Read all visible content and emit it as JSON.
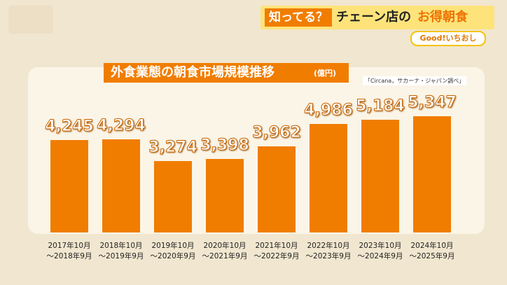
{
  "banner": {
    "tag": "知ってる？",
    "text": "チェーン店の",
    "highlight": "お得朝食",
    "badge": "Good!いちおし"
  },
  "chart_data": {
    "type": "bar",
    "title": "外食業態の朝食市場規模推移",
    "unit": "(億円)",
    "source": "「Circana，サカーナ・ジャパン調べ」",
    "categories": [
      "2017年10月\n～2018年9月",
      "2018年10月\n～2019年9月",
      "2019年10月\n～2020年9月",
      "2020年10月\n～2021年9月",
      "2021年10月\n～2022年9月",
      "2022年10月\n～2023年9月",
      "2023年10月\n～2024年9月",
      "2024年10月\n～2025年9月"
    ],
    "values": [
      4245,
      4294,
      3274,
      3398,
      3962,
      4986,
      5184,
      5347
    ],
    "value_labels": [
      "4,245",
      "4,294",
      "3,274",
      "3,398",
      "3,962",
      "4,986",
      "5,184",
      "5,347"
    ],
    "color": "#f07d00"
  }
}
